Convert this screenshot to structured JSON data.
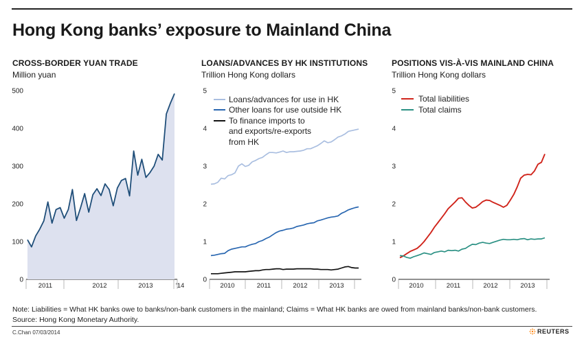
{
  "header": {
    "title": "Hong Kong banks’ exposure to Mainland China"
  },
  "colors": {
    "area_fill": "#dde1ef",
    "line_dark": "#1f4e79",
    "light_blue": "#a9bee0",
    "mid_blue": "#2866b0",
    "black": "#111111",
    "red": "#d0241b",
    "teal": "#2a9083"
  },
  "panels": [
    {
      "title": "CROSS-BORDER YUAN TRADE",
      "subtitle": "Million yuan"
    },
    {
      "title": "LOANS/ADVANCES BY HK INSTITUTIONS",
      "subtitle": "Trillion Hong Kong dollars"
    },
    {
      "title": "POSITIONS VIS-À-VIS MAINLAND CHINA",
      "subtitle": "Trillion Hong Kong dollars"
    }
  ],
  "chart_data": [
    {
      "type": "area",
      "title": "CROSS-BORDER YUAN TRADE",
      "ylabel": "Million yuan",
      "ylim": [
        0,
        500
      ],
      "yticks": [
        "0",
        "100",
        "200",
        "300",
        "400",
        "500"
      ],
      "xticks": [
        "2011",
        "2012",
        "2013",
        "’14"
      ],
      "series": [
        {
          "name": "Cross-border yuan trade",
          "values": [
            105,
            86,
            115,
            133,
            155,
            205,
            149,
            185,
            190,
            162,
            185,
            238,
            156,
            190,
            227,
            178,
            224,
            240,
            222,
            253,
            238,
            195,
            242,
            262,
            267,
            221,
            340,
            276,
            318,
            270,
            283,
            300,
            331,
            316,
            438,
            467,
            492
          ]
        }
      ]
    },
    {
      "type": "line",
      "title": "LOANS/ADVANCES BY HK INSTITUTIONS",
      "ylabel": "Trillion Hong Kong dollars",
      "ylim": [
        0,
        5
      ],
      "yticks": [
        "0",
        "1",
        "2",
        "3",
        "4",
        "5"
      ],
      "xticks": [
        "2010",
        "2011",
        "2012",
        "2013"
      ],
      "legend": [
        "Loans/advances for use in HK",
        "Other loans for use outside HK",
        "To finance imports to",
        "and exports/re-exports",
        "from HK"
      ],
      "series": [
        {
          "name": "Loans/advances for use in HK",
          "values": [
            2.52,
            2.53,
            2.57,
            2.68,
            2.66,
            2.75,
            2.77,
            2.82,
            3.0,
            3.06,
            2.99,
            3.02,
            3.11,
            3.15,
            3.2,
            3.23,
            3.3,
            3.36,
            3.36,
            3.35,
            3.37,
            3.4,
            3.36,
            3.38,
            3.38,
            3.39,
            3.4,
            3.42,
            3.46,
            3.46,
            3.5,
            3.54,
            3.6,
            3.67,
            3.62,
            3.64,
            3.7,
            3.77,
            3.8,
            3.85,
            3.92,
            3.94,
            3.96,
            3.98
          ]
        },
        {
          "name": "Other loans for use outside HK",
          "values": [
            0.63,
            0.64,
            0.66,
            0.68,
            0.69,
            0.76,
            0.8,
            0.82,
            0.84,
            0.86,
            0.86,
            0.9,
            0.93,
            0.95,
            1.0,
            1.03,
            1.08,
            1.12,
            1.18,
            1.24,
            1.28,
            1.3,
            1.33,
            1.34,
            1.36,
            1.4,
            1.42,
            1.44,
            1.47,
            1.49,
            1.5,
            1.55,
            1.57,
            1.6,
            1.63,
            1.65,
            1.66,
            1.68,
            1.75,
            1.79,
            1.84,
            1.87,
            1.9,
            1.92
          ]
        },
        {
          "name": "To finance imports to and exports/re-exports from HK",
          "values": [
            0.15,
            0.15,
            0.15,
            0.16,
            0.17,
            0.18,
            0.19,
            0.2,
            0.2,
            0.2,
            0.2,
            0.21,
            0.22,
            0.23,
            0.23,
            0.25,
            0.26,
            0.26,
            0.27,
            0.28,
            0.28,
            0.26,
            0.27,
            0.27,
            0.27,
            0.28,
            0.28,
            0.28,
            0.28,
            0.28,
            0.27,
            0.27,
            0.26,
            0.26,
            0.26,
            0.25,
            0.26,
            0.27,
            0.3,
            0.33,
            0.34,
            0.31,
            0.3,
            0.3
          ]
        }
      ]
    },
    {
      "type": "line",
      "title": "POSITIONS VIS-À-VIS MAINLAND CHINA",
      "ylabel": "Trillion Hong Kong dollars",
      "ylim": [
        0,
        5
      ],
      "yticks": [
        "0",
        "1",
        "2",
        "3",
        "4",
        "5"
      ],
      "xticks": [
        "2010",
        "2011",
        "2012",
        "2013"
      ],
      "legend": [
        "Total liabilities",
        "Total claims"
      ],
      "series": [
        {
          "name": "Total liabilities",
          "values": [
            0.57,
            0.62,
            0.68,
            0.74,
            0.78,
            0.82,
            0.9,
            1.0,
            1.12,
            1.24,
            1.38,
            1.5,
            1.62,
            1.74,
            1.87,
            1.96,
            2.05,
            2.15,
            2.16,
            2.05,
            1.96,
            1.89,
            1.91,
            1.98,
            2.06,
            2.1,
            2.09,
            2.04,
            2.0,
            1.96,
            1.91,
            1.96,
            2.1,
            2.25,
            2.45,
            2.68,
            2.76,
            2.78,
            2.77,
            2.87,
            3.05,
            3.1,
            3.32
          ]
        },
        {
          "name": "Total claims",
          "values": [
            0.63,
            0.62,
            0.58,
            0.56,
            0.6,
            0.63,
            0.66,
            0.7,
            0.68,
            0.66,
            0.71,
            0.73,
            0.75,
            0.73,
            0.77,
            0.76,
            0.77,
            0.75,
            0.8,
            0.82,
            0.88,
            0.93,
            0.92,
            0.96,
            0.98,
            0.96,
            0.95,
            0.98,
            1.01,
            1.04,
            1.06,
            1.05,
            1.05,
            1.06,
            1.05,
            1.07,
            1.08,
            1.05,
            1.07,
            1.06,
            1.07,
            1.07,
            1.1
          ]
        }
      ]
    }
  ],
  "footer": {
    "note": "Note: Liabilities = What HK banks owe to banks/non-bank customers in the mainland; Claims = What HK banks are owed from mainland banks/non-bank customers.",
    "source": "Source: Hong Kong Monetary Authority.",
    "credit": "C.Chan  07/03/2014",
    "logo": "REUTERS"
  }
}
